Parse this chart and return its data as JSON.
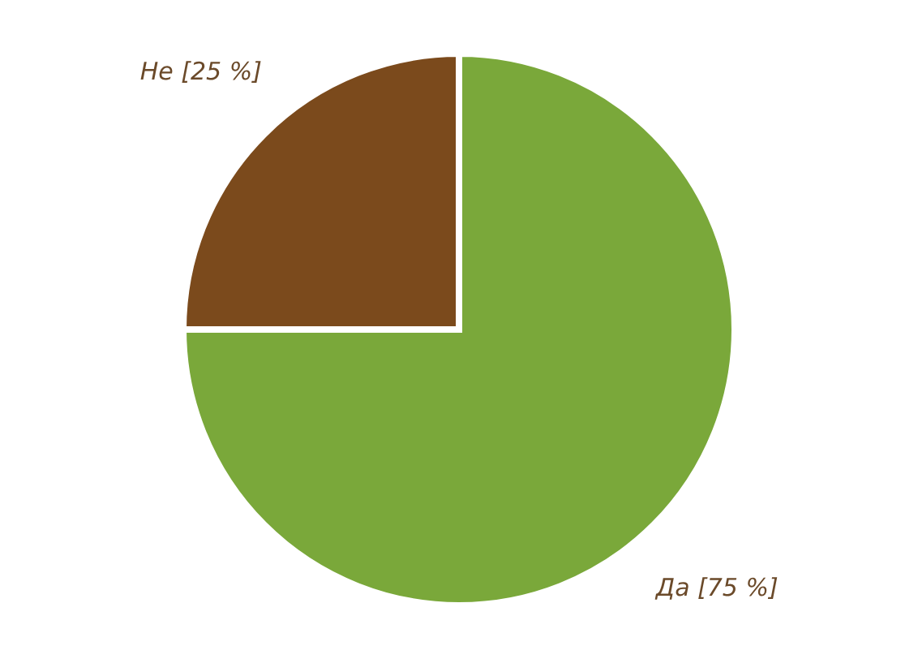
{
  "chart_data": {
    "type": "pie",
    "categories": [
      "Да",
      "Не"
    ],
    "values": [
      75,
      25
    ],
    "colors": [
      "#7aa83a",
      "#7b4a1c"
    ],
    "value_labels": [
      "[75 %]",
      "[25 %]"
    ],
    "legend": false
  }
}
